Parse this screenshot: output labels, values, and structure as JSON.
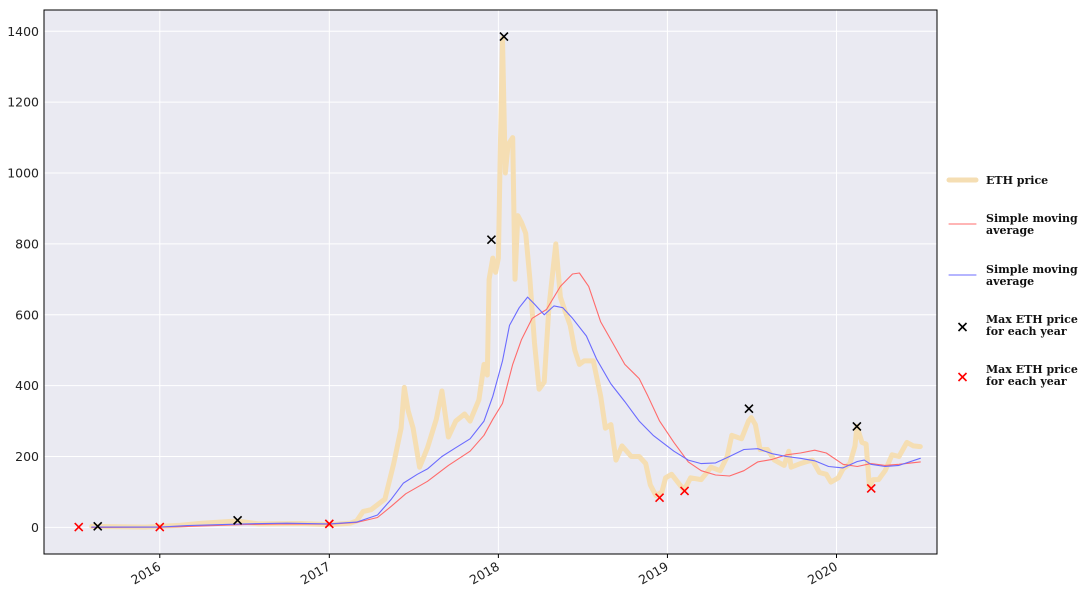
{
  "chart_data": {
    "type": "line",
    "title": "",
    "xlabel": "",
    "ylabel": "",
    "xlim": [
      "2015-04-26",
      "2020-08-05"
    ],
    "ylim": [
      -75,
      1460
    ],
    "grid": true,
    "legend_position": "right",
    "x_tick_labels": [
      "2016",
      "2017",
      "2018",
      "2019",
      "2020"
    ],
    "x_tick_dates": [
      "2016-01-01",
      "2017-01-01",
      "2018-01-01",
      "2019-01-01",
      "2020-01-01"
    ],
    "y_ticks": [
      0,
      200,
      400,
      600,
      800,
      1000,
      1200,
      1400
    ],
    "colors": {
      "background": "#eaeaf2",
      "price": "#f5deb3",
      "sma_long": "#ff6b6b",
      "sma_short": "#6b6bff",
      "max_marker": "#000000",
      "min_marker": "#ff0000"
    },
    "series": [
      {
        "key": "price",
        "name": "ETH price",
        "points": [
          [
            "2015-08-07",
            3
          ],
          [
            "2015-12-01",
            1
          ],
          [
            "2016-02-15",
            6
          ],
          [
            "2016-04-01",
            12
          ],
          [
            "2016-06-15",
            18
          ],
          [
            "2016-08-01",
            10
          ],
          [
            "2016-11-01",
            11
          ],
          [
            "2017-01-01",
            8
          ],
          [
            "2017-02-15",
            12
          ],
          [
            "2017-03-01",
            18
          ],
          [
            "2017-03-15",
            45
          ],
          [
            "2017-04-01",
            50
          ],
          [
            "2017-05-01",
            80
          ],
          [
            "2017-05-20",
            180
          ],
          [
            "2017-06-05",
            280
          ],
          [
            "2017-06-12",
            395
          ],
          [
            "2017-06-20",
            330
          ],
          [
            "2017-07-01",
            280
          ],
          [
            "2017-07-15",
            170
          ],
          [
            "2017-08-01",
            225
          ],
          [
            "2017-08-20",
            305
          ],
          [
            "2017-09-01",
            385
          ],
          [
            "2017-09-15",
            255
          ],
          [
            "2017-10-01",
            300
          ],
          [
            "2017-10-20",
            320
          ],
          [
            "2017-11-01",
            300
          ],
          [
            "2017-11-20",
            360
          ],
          [
            "2017-12-01",
            460
          ],
          [
            "2017-12-08",
            430
          ],
          [
            "2017-12-12",
            700
          ],
          [
            "2017-12-20",
            760
          ],
          [
            "2017-12-26",
            720
          ],
          [
            "2018-01-01",
            760
          ],
          [
            "2018-01-05",
            1050
          ],
          [
            "2018-01-10",
            1380
          ],
          [
            "2018-01-16",
            1000
          ],
          [
            "2018-01-22",
            1080
          ],
          [
            "2018-02-01",
            1100
          ],
          [
            "2018-02-06",
            700
          ],
          [
            "2018-02-12",
            880
          ],
          [
            "2018-02-20",
            860
          ],
          [
            "2018-03-01",
            830
          ],
          [
            "2018-03-10",
            700
          ],
          [
            "2018-03-20",
            520
          ],
          [
            "2018-03-30",
            390
          ],
          [
            "2018-04-10",
            410
          ],
          [
            "2018-04-20",
            620
          ],
          [
            "2018-05-05",
            800
          ],
          [
            "2018-05-15",
            650
          ],
          [
            "2018-05-25",
            610
          ],
          [
            "2018-06-05",
            570
          ],
          [
            "2018-06-15",
            500
          ],
          [
            "2018-06-25",
            460
          ],
          [
            "2018-07-05",
            470
          ],
          [
            "2018-07-25",
            470
          ],
          [
            "2018-08-10",
            370
          ],
          [
            "2018-08-20",
            280
          ],
          [
            "2018-09-01",
            290
          ],
          [
            "2018-09-12",
            190
          ],
          [
            "2018-09-25",
            230
          ],
          [
            "2018-10-15",
            200
          ],
          [
            "2018-11-01",
            200
          ],
          [
            "2018-11-15",
            180
          ],
          [
            "2018-11-25",
            120
          ],
          [
            "2018-12-07",
            90
          ],
          [
            "2018-12-20",
            100
          ],
          [
            "2018-12-28",
            140
          ],
          [
            "2019-01-10",
            150
          ],
          [
            "2019-02-06",
            105
          ],
          [
            "2019-02-20",
            140
          ],
          [
            "2019-03-15",
            135
          ],
          [
            "2019-04-05",
            170
          ],
          [
            "2019-04-25",
            160
          ],
          [
            "2019-05-10",
            200
          ],
          [
            "2019-05-20",
            260
          ],
          [
            "2019-06-10",
            250
          ],
          [
            "2019-06-25",
            300
          ],
          [
            "2019-07-01",
            310
          ],
          [
            "2019-07-10",
            290
          ],
          [
            "2019-07-20",
            220
          ],
          [
            "2019-08-05",
            220
          ],
          [
            "2019-08-20",
            190
          ],
          [
            "2019-09-10",
            175
          ],
          [
            "2019-09-20",
            215
          ],
          [
            "2019-09-25",
            170
          ],
          [
            "2019-10-15",
            180
          ],
          [
            "2019-10-27",
            185
          ],
          [
            "2019-11-10",
            190
          ],
          [
            "2019-11-25",
            155
          ],
          [
            "2019-12-10",
            150
          ],
          [
            "2019-12-20",
            128
          ],
          [
            "2020-01-05",
            140
          ],
          [
            "2020-01-15",
            165
          ],
          [
            "2020-01-30",
            180
          ],
          [
            "2020-02-10",
            230
          ],
          [
            "2020-02-14",
            285
          ],
          [
            "2020-02-25",
            240
          ],
          [
            "2020-03-05",
            235
          ],
          [
            "2020-03-12",
            115
          ],
          [
            "2020-03-20",
            135
          ],
          [
            "2020-04-01",
            135
          ],
          [
            "2020-04-15",
            160
          ],
          [
            "2020-04-30",
            205
          ],
          [
            "2020-05-15",
            200
          ],
          [
            "2020-06-01",
            240
          ],
          [
            "2020-06-15",
            230
          ],
          [
            "2020-06-30",
            228
          ]
        ]
      },
      {
        "key": "sma_long",
        "name": "Simple moving average",
        "points": [
          [
            "2015-08-07",
            0
          ],
          [
            "2016-01-01",
            1
          ],
          [
            "2016-03-01",
            3
          ],
          [
            "2016-07-01",
            8
          ],
          [
            "2016-10-01",
            10
          ],
          [
            "2017-01-01",
            9
          ],
          [
            "2017-03-01",
            14
          ],
          [
            "2017-04-15",
            28
          ],
          [
            "2017-05-15",
            60
          ],
          [
            "2017-06-15",
            95
          ],
          [
            "2017-08-01",
            130
          ],
          [
            "2017-09-15",
            175
          ],
          [
            "2017-11-01",
            215
          ],
          [
            "2017-12-01",
            260
          ],
          [
            "2017-12-20",
            305
          ],
          [
            "2018-01-10",
            350
          ],
          [
            "2018-02-01",
            460
          ],
          [
            "2018-02-20",
            530
          ],
          [
            "2018-03-15",
            590
          ],
          [
            "2018-04-15",
            615
          ],
          [
            "2018-05-15",
            680
          ],
          [
            "2018-06-10",
            715
          ],
          [
            "2018-06-25",
            718
          ],
          [
            "2018-07-15",
            680
          ],
          [
            "2018-08-10",
            580
          ],
          [
            "2018-09-05",
            520
          ],
          [
            "2018-10-01",
            460
          ],
          [
            "2018-11-01",
            420
          ],
          [
            "2018-11-20",
            370
          ],
          [
            "2018-12-15",
            300
          ],
          [
            "2019-01-15",
            240
          ],
          [
            "2019-02-15",
            185
          ],
          [
            "2019-03-15",
            160
          ],
          [
            "2019-04-15",
            148
          ],
          [
            "2019-05-15",
            145
          ],
          [
            "2019-06-15",
            160
          ],
          [
            "2019-07-15",
            185
          ],
          [
            "2019-08-15",
            192
          ],
          [
            "2019-09-15",
            205
          ],
          [
            "2019-10-15",
            210
          ],
          [
            "2019-11-15",
            218
          ],
          [
            "2019-12-10",
            210
          ],
          [
            "2020-01-15",
            178
          ],
          [
            "2020-02-15",
            172
          ],
          [
            "2020-03-15",
            180
          ],
          [
            "2020-04-15",
            175
          ],
          [
            "2020-05-15",
            178
          ],
          [
            "2020-06-30",
            185
          ]
        ]
      },
      {
        "key": "sma_short",
        "name": "Simple moving average",
        "points": [
          [
            "2015-08-07",
            1
          ],
          [
            "2016-01-01",
            1
          ],
          [
            "2016-03-01",
            5
          ],
          [
            "2016-07-01",
            10
          ],
          [
            "2016-10-01",
            12
          ],
          [
            "2017-01-01",
            10
          ],
          [
            "2017-03-01",
            15
          ],
          [
            "2017-04-15",
            35
          ],
          [
            "2017-05-15",
            80
          ],
          [
            "2017-06-10",
            125
          ],
          [
            "2017-07-10",
            150
          ],
          [
            "2017-08-01",
            165
          ],
          [
            "2017-09-01",
            200
          ],
          [
            "2017-10-01",
            225
          ],
          [
            "2017-11-01",
            250
          ],
          [
            "2017-12-01",
            300
          ],
          [
            "2017-12-20",
            370
          ],
          [
            "2018-01-10",
            470
          ],
          [
            "2018-01-25",
            570
          ],
          [
            "2018-02-15",
            620
          ],
          [
            "2018-03-05",
            650
          ],
          [
            "2018-03-20",
            630
          ],
          [
            "2018-04-10",
            600
          ],
          [
            "2018-05-01",
            625
          ],
          [
            "2018-05-20",
            620
          ],
          [
            "2018-06-10",
            590
          ],
          [
            "2018-07-10",
            540
          ],
          [
            "2018-08-01",
            475
          ],
          [
            "2018-09-01",
            405
          ],
          [
            "2018-10-01",
            355
          ],
          [
            "2018-11-01",
            300
          ],
          [
            "2018-12-01",
            260
          ],
          [
            "2019-01-15",
            215
          ],
          [
            "2019-02-15",
            190
          ],
          [
            "2019-03-15",
            180
          ],
          [
            "2019-04-15",
            182
          ],
          [
            "2019-05-15",
            200
          ],
          [
            "2019-06-15",
            220
          ],
          [
            "2019-07-15",
            222
          ],
          [
            "2019-08-15",
            208
          ],
          [
            "2019-09-15",
            200
          ],
          [
            "2019-10-15",
            195
          ],
          [
            "2019-11-15",
            188
          ],
          [
            "2019-12-15",
            172
          ],
          [
            "2020-01-15",
            168
          ],
          [
            "2020-02-15",
            186
          ],
          [
            "2020-03-01",
            190
          ],
          [
            "2020-03-15",
            178
          ],
          [
            "2020-04-15",
            172
          ],
          [
            "2020-05-15",
            175
          ],
          [
            "2020-06-30",
            195
          ]
        ]
      }
    ],
    "markers": [
      {
        "key": "max",
        "name": "Max ETH price for each year",
        "color": "#000000",
        "points": [
          [
            "2015-08-20",
            3
          ],
          [
            "2016-06-17",
            20
          ],
          [
            "2017-12-17",
            812
          ],
          [
            "2018-01-13",
            1385
          ],
          [
            "2019-06-26",
            335
          ],
          [
            "2020-02-14",
            285
          ]
        ]
      },
      {
        "key": "min",
        "name": "Max ETH price for each year",
        "color": "#ff0000",
        "points": [
          [
            "2015-07-10",
            1
          ],
          [
            "2016-01-01",
            1
          ],
          [
            "2017-01-01",
            10
          ],
          [
            "2018-12-15",
            84
          ],
          [
            "2019-02-07",
            103
          ],
          [
            "2020-03-16",
            110
          ]
        ]
      }
    ]
  }
}
